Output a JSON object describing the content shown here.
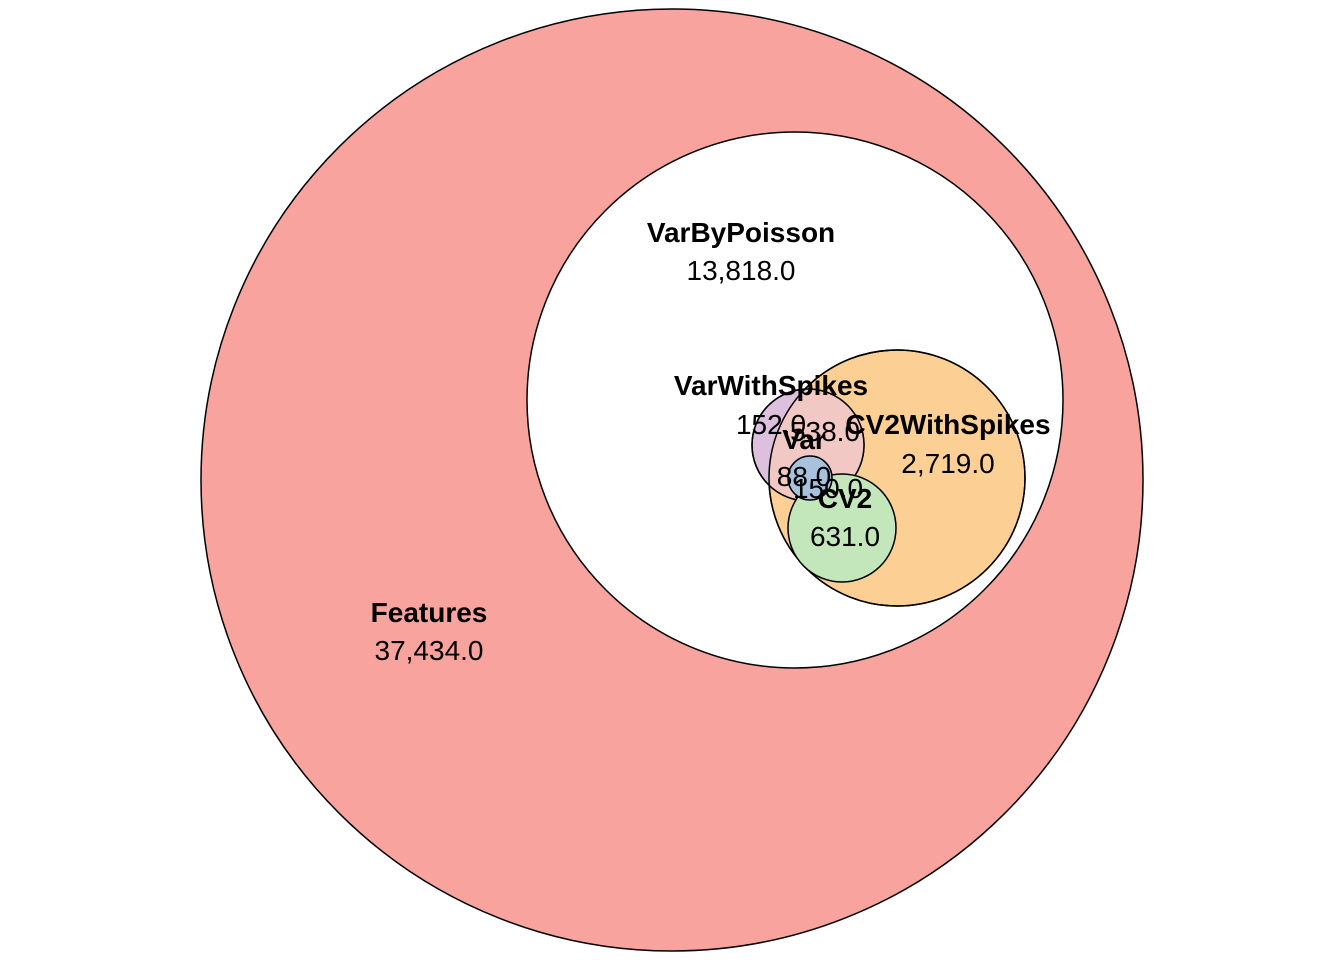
{
  "sets": [
    {
      "id": "features",
      "name": "Features",
      "count": "37,434.0",
      "color": "#F8A39E"
    },
    {
      "id": "varbypoisson",
      "name": "VarByPoisson",
      "count": "13,818.0",
      "color": "#FFFFFF"
    },
    {
      "id": "cv2withspikes",
      "name": "CV2WithSpikes",
      "count": "2,719.0",
      "color": "#FCCF94"
    },
    {
      "id": "cv2",
      "name": "CV2",
      "count": "631.0",
      "color": "#C3E7BA"
    },
    {
      "id": "varwithspikes",
      "name": "VarWithSpikes",
      "count": "152.0",
      "color": "#DDC0DE"
    },
    {
      "id": "var",
      "name": "Var",
      "count": "88.0",
      "color": "#A8C2DE"
    }
  ],
  "intersections": [
    {
      "id": "varwithspikes-cv2withspikes",
      "count": "538.0",
      "color": "#F2C8C4"
    },
    {
      "id": "var-cv2",
      "count": "150.0"
    }
  ]
}
